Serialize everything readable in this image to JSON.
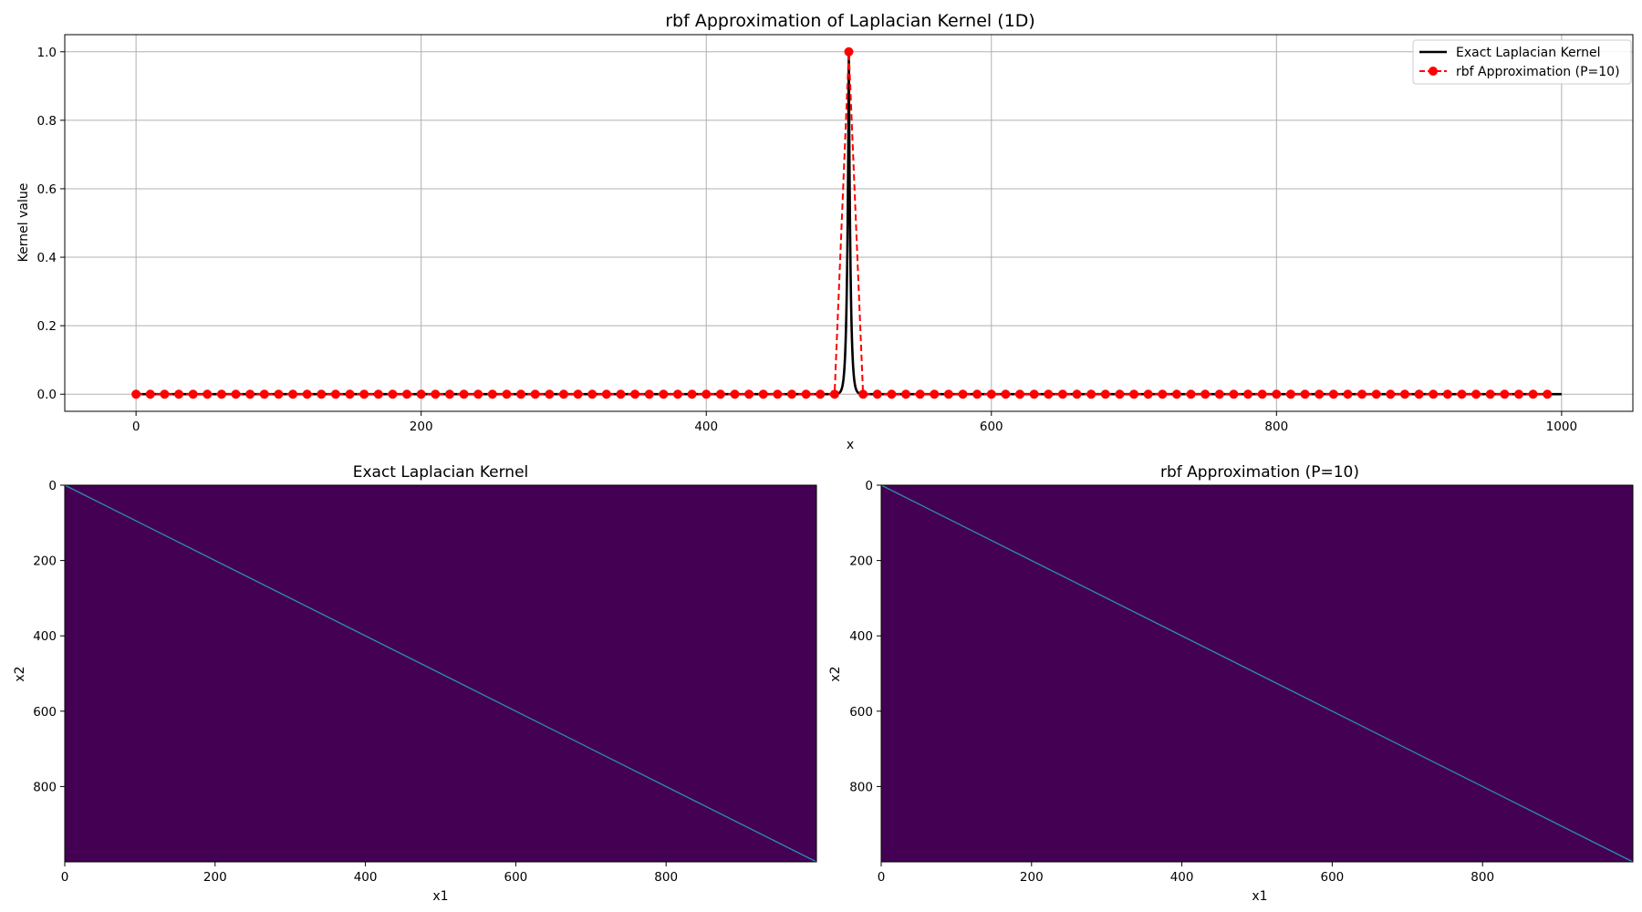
{
  "chart_data": [
    {
      "type": "line",
      "title": "rbf Approximation of Laplacian Kernel (1D)",
      "xlabel": "x",
      "ylabel": "Kernel value",
      "xlim": [
        -50,
        1050
      ],
      "ylim": [
        -0.05,
        1.05
      ],
      "xticks": [
        0,
        200,
        400,
        600,
        800,
        1000
      ],
      "xtick_labels": [
        "0",
        "200",
        "400",
        "600",
        "800",
        "1000"
      ],
      "yticks": [
        0.0,
        0.2,
        0.4,
        0.6,
        0.8,
        1.0
      ],
      "ytick_labels": [
        "0.0",
        "0.2",
        "0.4",
        "0.6",
        "0.8",
        "1.0"
      ],
      "grid": true,
      "legend_position": "upper right",
      "series": [
        {
          "name": "Exact Laplacian Kernel",
          "color": "#000000",
          "style": "solid",
          "peak_x": 500,
          "peak_y": 1.0,
          "decay_scale": 1.2,
          "x_range": [
            0,
            1000
          ]
        },
        {
          "name": "rbf Approximation (P=10)",
          "color": "#ff0000",
          "style": "dashed",
          "marker": "circle",
          "x_start": 0,
          "x_step": 10,
          "n_points": 100,
          "peak_x": 500,
          "peak_y": 1.0
        }
      ]
    },
    {
      "type": "heatmap",
      "title": "Exact Laplacian Kernel",
      "xlabel": "x1",
      "ylabel": "x2",
      "x_range": [
        0,
        999
      ],
      "y_range": [
        0,
        999
      ],
      "y_inverted": true,
      "xticks": [
        0,
        200,
        400,
        600,
        800
      ],
      "xtick_labels": [
        "0",
        "200",
        "400",
        "600",
        "800"
      ],
      "yticks": [
        0,
        200,
        400,
        600,
        800
      ],
      "ytick_labels": [
        "0",
        "200",
        "400",
        "600",
        "800"
      ],
      "background_color": "#440154",
      "diagonal_color": "#2a8fb0",
      "description": "Values near 0 everywhere except the main diagonal x1 = x2 (value 1)"
    },
    {
      "type": "heatmap",
      "title": "rbf Approximation (P=10)",
      "xlabel": "x1",
      "ylabel": "x2",
      "x_range": [
        0,
        999
      ],
      "y_range": [
        0,
        999
      ],
      "y_inverted": true,
      "xticks": [
        0,
        200,
        400,
        600,
        800
      ],
      "xtick_labels": [
        "0",
        "200",
        "400",
        "600",
        "800"
      ],
      "yticks": [
        0,
        200,
        400,
        600,
        800
      ],
      "ytick_labels": [
        "0",
        "200",
        "400",
        "600",
        "800"
      ],
      "background_color": "#440154",
      "diagonal_color": "#2a8fb0",
      "description": "Values near 0 everywhere except the main diagonal x1 = x2 (value 1)"
    }
  ]
}
